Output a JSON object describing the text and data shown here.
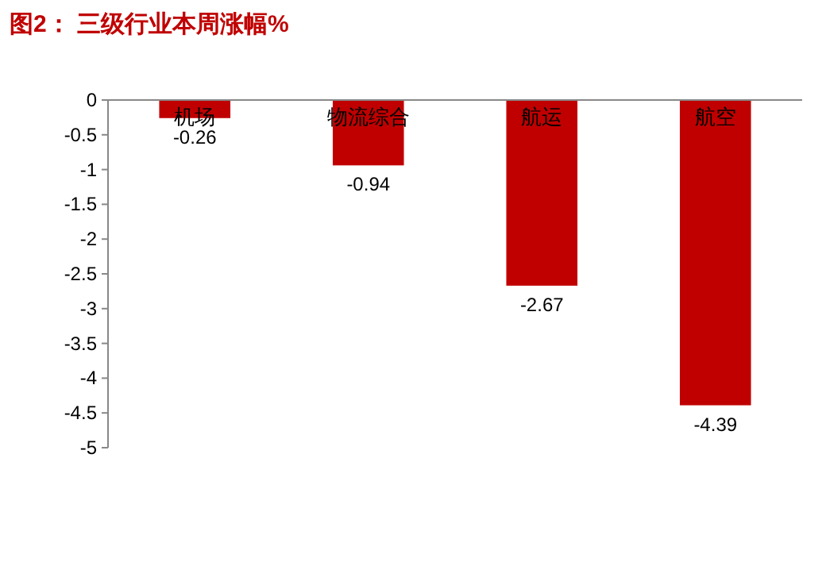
{
  "chart_data": {
    "type": "bar",
    "title": "图2：  三级行业本周涨幅%",
    "categories": [
      "机场",
      "物流综合",
      "航运",
      "航空"
    ],
    "values": [
      -0.26,
      -0.94,
      -2.67,
      -4.39
    ],
    "color": "#c00000",
    "ylim": [
      -5,
      0
    ],
    "yticks": [
      0,
      -0.5,
      -1,
      -1.5,
      -2,
      -2.5,
      -3,
      -3.5,
      -4,
      -4.5,
      -5
    ],
    "data_labels": true
  }
}
